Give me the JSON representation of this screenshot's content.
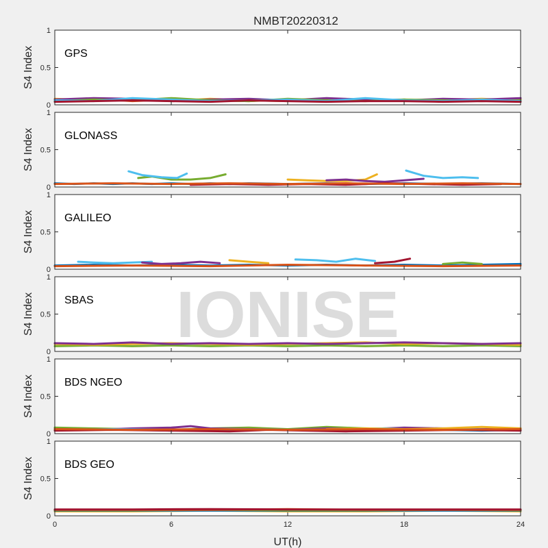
{
  "chart_data": {
    "type": "line",
    "title": "NMBT20220312",
    "watermark": "IONISE",
    "xlabel": "UT(h)",
    "ylabel": "S4 Index",
    "xlim": [
      0,
      24
    ],
    "ylim": [
      0,
      1
    ],
    "xticks": [
      "0",
      "6",
      "12",
      "18",
      "24"
    ],
    "yticks": [
      "0",
      "0.5",
      "1"
    ],
    "grid": false,
    "series_colors": [
      "#0072BD",
      "#D95319",
      "#EDB120",
      "#7E2F8E",
      "#77AC30",
      "#4DBEEE",
      "#A2142F"
    ],
    "panels": [
      {
        "label": "GPS",
        "series": [
          {
            "color": "#0072BD",
            "x": [
              0,
              2,
              4,
              6,
              8,
              10,
              12,
              14,
              16,
              18,
              20,
              22,
              24
            ],
            "y": [
              0.05,
              0.06,
              0.07,
              0.06,
              0.05,
              0.07,
              0.06,
              0.05,
              0.06,
              0.07,
              0.05,
              0.06,
              0.05
            ]
          },
          {
            "color": "#D95319",
            "x": [
              0,
              2,
              4,
              6,
              8,
              10,
              12,
              14,
              16,
              18,
              20,
              22,
              24
            ],
            "y": [
              0.06,
              0.08,
              0.05,
              0.07,
              0.06,
              0.05,
              0.07,
              0.06,
              0.05,
              0.06,
              0.07,
              0.06,
              0.07
            ]
          },
          {
            "color": "#EDB120",
            "x": [
              0,
              2,
              4,
              6,
              8,
              10,
              12,
              14,
              16,
              18,
              20,
              22,
              24
            ],
            "y": [
              0.08,
              0.06,
              0.07,
              0.05,
              0.08,
              0.06,
              0.05,
              0.07,
              0.08,
              0.05,
              0.06,
              0.08,
              0.06
            ]
          },
          {
            "color": "#7E2F8E",
            "x": [
              0,
              2,
              4,
              6,
              8,
              10,
              12,
              14,
              16,
              18,
              20,
              22,
              24
            ],
            "y": [
              0.07,
              0.09,
              0.08,
              0.06,
              0.07,
              0.08,
              0.06,
              0.09,
              0.07,
              0.06,
              0.08,
              0.07,
              0.09
            ]
          },
          {
            "color": "#77AC30",
            "x": [
              0,
              2,
              4,
              6,
              8,
              10,
              12,
              14,
              16,
              18,
              20,
              22,
              24
            ],
            "y": [
              0.05,
              0.07,
              0.06,
              0.09,
              0.06,
              0.05,
              0.08,
              0.06,
              0.05,
              0.07,
              0.06,
              0.05,
              0.06
            ]
          },
          {
            "color": "#4DBEEE",
            "x": [
              0,
              2,
              4,
              6,
              8,
              10,
              12,
              14,
              16,
              18,
              20,
              22,
              24
            ],
            "y": [
              0.06,
              0.05,
              0.09,
              0.07,
              0.05,
              0.06,
              0.07,
              0.05,
              0.09,
              0.06,
              0.05,
              0.07,
              0.05
            ]
          },
          {
            "color": "#A2142F",
            "x": [
              0,
              2,
              4,
              6,
              8,
              10,
              12,
              14,
              16,
              18,
              20,
              22,
              24
            ],
            "y": [
              0.04,
              0.05,
              0.06,
              0.05,
              0.04,
              0.06,
              0.05,
              0.04,
              0.05,
              0.05,
              0.04,
              0.05,
              0.04
            ]
          }
        ]
      },
      {
        "label": "GLONASS",
        "series": [
          {
            "color": "#0072BD",
            "x": [
              0,
              1,
              2,
              3,
              4,
              5,
              6,
              7,
              8,
              9,
              10,
              12,
              14,
              16,
              18,
              20,
              22,
              24
            ],
            "y": [
              0.05,
              0.04,
              0.05,
              0.04,
              0.05,
              0.04,
              0.05,
              0.04,
              0.05,
              0.04,
              0.05,
              0.04,
              0.05,
              0.04,
              0.05,
              0.04,
              0.05,
              0.04
            ]
          },
          {
            "color": "#77AC30",
            "x": [
              4.3,
              5,
              6,
              7,
              8,
              8.8
            ],
            "y": [
              0.12,
              0.14,
              0.1,
              0.1,
              0.12,
              0.17
            ]
          },
          {
            "color": "#4DBEEE",
            "x": [
              3.8,
              4.5,
              5.5,
              6.3,
              6.8
            ],
            "y": [
              0.21,
              0.16,
              0.13,
              0.12,
              0.18
            ]
          },
          {
            "color": "#EDB120",
            "x": [
              12,
              13,
              14,
              15,
              16,
              16.6
            ],
            "y": [
              0.1,
              0.09,
              0.08,
              0.08,
              0.1,
              0.17
            ]
          },
          {
            "color": "#7E2F8E",
            "x": [
              14,
              15,
              16,
              17,
              18,
              19
            ],
            "y": [
              0.09,
              0.1,
              0.08,
              0.07,
              0.09,
              0.11
            ]
          },
          {
            "color": "#4DBEEE",
            "x": [
              18.1,
              19,
              20,
              21,
              21.8
            ],
            "y": [
              0.22,
              0.15,
              0.12,
              0.13,
              0.12
            ]
          },
          {
            "color": "#A2142F",
            "x": [
              7,
              9,
              11,
              13,
              15,
              17,
              19,
              21,
              23
            ],
            "y": [
              0.03,
              0.04,
              0.03,
              0.04,
              0.03,
              0.05,
              0.04,
              0.03,
              0.04
            ]
          },
          {
            "color": "#D95319",
            "x": [
              0,
              3,
              6,
              9,
              12,
              15,
              18,
              21,
              24
            ],
            "y": [
              0.04,
              0.05,
              0.04,
              0.05,
              0.04,
              0.05,
              0.04,
              0.05,
              0.04
            ]
          }
        ]
      },
      {
        "label": "GALILEO",
        "series": [
          {
            "color": "#0072BD",
            "x": [
              0,
              2,
              4,
              6,
              8,
              10,
              12,
              14,
              16,
              18,
              20,
              22,
              24
            ],
            "y": [
              0.05,
              0.06,
              0.05,
              0.06,
              0.05,
              0.06,
              0.05,
              0.06,
              0.05,
              0.06,
              0.05,
              0.06,
              0.07
            ]
          },
          {
            "color": "#4DBEEE",
            "x": [
              1.2,
              2,
              3,
              4,
              5
            ],
            "y": [
              0.1,
              0.09,
              0.08,
              0.09,
              0.1
            ]
          },
          {
            "color": "#7E2F8E",
            "x": [
              4.5,
              5.5,
              6.5,
              7.5,
              8.5
            ],
            "y": [
              0.09,
              0.07,
              0.08,
              0.1,
              0.08
            ]
          },
          {
            "color": "#EDB120",
            "x": [
              9,
              10,
              11
            ],
            "y": [
              0.12,
              0.1,
              0.08
            ]
          },
          {
            "color": "#4DBEEE",
            "x": [
              12.4,
              13.5,
              14.5,
              15.5,
              16.5
            ],
            "y": [
              0.13,
              0.12,
              0.1,
              0.14,
              0.11
            ]
          },
          {
            "color": "#A2142F",
            "x": [
              16.5,
              17.5,
              18.3
            ],
            "y": [
              0.08,
              0.1,
              0.14
            ]
          },
          {
            "color": "#77AC30",
            "x": [
              20,
              21,
              22
            ],
            "y": [
              0.07,
              0.09,
              0.07
            ]
          },
          {
            "color": "#D95319",
            "x": [
              0,
              4,
              8,
              12,
              16,
              20,
              24
            ],
            "y": [
              0.04,
              0.05,
              0.04,
              0.06,
              0.05,
              0.04,
              0.05
            ]
          }
        ]
      },
      {
        "label": "SBAS",
        "series": [
          {
            "color": "#77AC30",
            "x": [
              0,
              2,
              4,
              6,
              8,
              10,
              12,
              14,
              16,
              18,
              20,
              22,
              24
            ],
            "y": [
              0.07,
              0.08,
              0.07,
              0.08,
              0.07,
              0.08,
              0.07,
              0.08,
              0.07,
              0.08,
              0.07,
              0.08,
              0.07
            ]
          },
          {
            "color": "#EDB120",
            "x": [
              0,
              2,
              4,
              6,
              8,
              10,
              12,
              14,
              16,
              18,
              20,
              22,
              24
            ],
            "y": [
              0.1,
              0.09,
              0.1,
              0.11,
              0.1,
              0.09,
              0.1,
              0.11,
              0.12,
              0.1,
              0.11,
              0.1,
              0.09
            ]
          },
          {
            "color": "#7E2F8E",
            "x": [
              0,
              2,
              4,
              6,
              8,
              10,
              12,
              14,
              16,
              18,
              20,
              22,
              24
            ],
            "y": [
              0.11,
              0.1,
              0.12,
              0.1,
              0.11,
              0.1,
              0.11,
              0.1,
              0.11,
              0.12,
              0.11,
              0.1,
              0.11
            ]
          }
        ]
      },
      {
        "label": "BDS NGEO",
        "series": [
          {
            "color": "#0072BD",
            "x": [
              0,
              2,
              4,
              6,
              8,
              10,
              12,
              14,
              16,
              18,
              20,
              22,
              24
            ],
            "y": [
              0.05,
              0.06,
              0.05,
              0.04,
              0.05,
              0.06,
              0.05,
              0.04,
              0.05,
              0.06,
              0.05,
              0.04,
              0.05
            ]
          },
          {
            "color": "#77AC30",
            "x": [
              0,
              2,
              4,
              6,
              8,
              10,
              12,
              14,
              16,
              18,
              20,
              22,
              24
            ],
            "y": [
              0.08,
              0.07,
              0.06,
              0.05,
              0.07,
              0.08,
              0.06,
              0.09,
              0.07,
              0.06,
              0.05,
              0.06,
              0.05
            ]
          },
          {
            "color": "#7E2F8E",
            "x": [
              0,
              2,
              4,
              6,
              7,
              8,
              10,
              12,
              14,
              16,
              18,
              20,
              22,
              24
            ],
            "y": [
              0.06,
              0.05,
              0.07,
              0.08,
              0.1,
              0.07,
              0.06,
              0.05,
              0.07,
              0.06,
              0.08,
              0.07,
              0.06,
              0.07
            ]
          },
          {
            "color": "#4DBEEE",
            "x": [
              0,
              3,
              6,
              9,
              12,
              15,
              17,
              19,
              21,
              24
            ],
            "y": [
              0.05,
              0.06,
              0.05,
              0.06,
              0.05,
              0.06,
              0.07,
              0.05,
              0.06,
              0.05
            ]
          },
          {
            "color": "#A2142F",
            "x": [
              0,
              3,
              6,
              9,
              11,
              13,
              15,
              18,
              21,
              24
            ],
            "y": [
              0.04,
              0.05,
              0.04,
              0.03,
              0.05,
              0.04,
              0.03,
              0.04,
              0.05,
              0.04
            ]
          },
          {
            "color": "#EDB120",
            "x": [
              14,
              16,
              18,
              20,
              22,
              24
            ],
            "y": [
              0.06,
              0.07,
              0.06,
              0.07,
              0.09,
              0.07
            ]
          },
          {
            "color": "#D95319",
            "x": [
              0,
              4,
              8,
              12,
              16,
              20,
              24
            ],
            "y": [
              0.06,
              0.05,
              0.06,
              0.05,
              0.06,
              0.05,
              0.06
            ]
          }
        ]
      },
      {
        "label": "BDS GEO",
        "series": [
          {
            "color": "#EDB120",
            "x": [
              0,
              4,
              8,
              12,
              16,
              20,
              24
            ],
            "y": [
              0.06,
              0.06,
              0.07,
              0.06,
              0.06,
              0.07,
              0.06
            ]
          },
          {
            "color": "#0072BD",
            "x": [
              0,
              4,
              8,
              12,
              16,
              20,
              24
            ],
            "y": [
              0.07,
              0.07,
              0.07,
              0.07,
              0.07,
              0.07,
              0.07
            ]
          },
          {
            "color": "#77AC30",
            "x": [
              0,
              4,
              8,
              12,
              16,
              20,
              24
            ],
            "y": [
              0.075,
              0.075,
              0.08,
              0.075,
              0.075,
              0.08,
              0.075
            ]
          },
          {
            "color": "#D95319",
            "x": [
              0,
              4,
              8,
              12,
              16,
              20,
              24
            ],
            "y": [
              0.08,
              0.08,
              0.08,
              0.09,
              0.08,
              0.08,
              0.08
            ]
          },
          {
            "color": "#A2142F",
            "x": [
              0,
              4,
              8,
              12,
              16,
              20,
              24
            ],
            "y": [
              0.085,
              0.085,
              0.09,
              0.085,
              0.085,
              0.085,
              0.085
            ]
          }
        ]
      }
    ]
  }
}
